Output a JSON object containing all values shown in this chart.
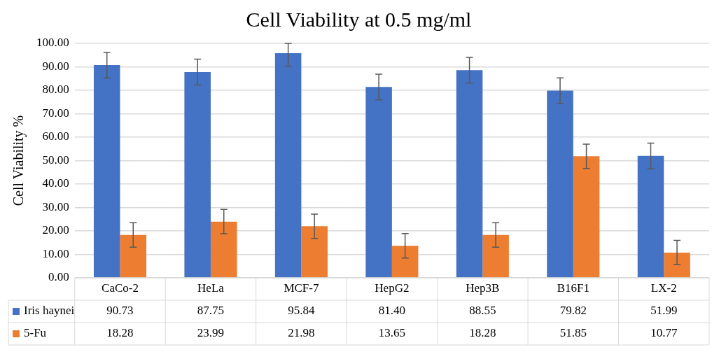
{
  "chart_data": {
    "type": "bar",
    "title": "Cell Viability at 0.5 mg/ml",
    "ylabel": "Cell Viability %",
    "categories": [
      "CaCo-2",
      "HeLa",
      "MCF-7",
      "HepG2",
      "Hep3B",
      "B16F1",
      "LX-2"
    ],
    "series": [
      {
        "name": "Iris haynei",
        "color": "#4472c4",
        "values": [
          90.73,
          87.75,
          95.84,
          81.4,
          88.55,
          79.82,
          51.99
        ],
        "value_labels": [
          "90.73",
          "87.75",
          "95.84",
          "81.40",
          "88.55",
          "79.82",
          "51.99"
        ],
        "errors": [
          5.5,
          5.5,
          [
            90.3,
            100
          ],
          5.5,
          5.5,
          5.5,
          5.5
        ]
      },
      {
        "name": "5-Fu",
        "color": "#ed7d31",
        "values": [
          18.28,
          23.99,
          21.98,
          13.65,
          18.28,
          51.85,
          10.77
        ],
        "value_labels": [
          "18.28",
          "23.99",
          "21.98",
          "13.65",
          "18.28",
          "51.85",
          "10.77"
        ],
        "errors": [
          5.2,
          5.2,
          5.2,
          5.2,
          5.2,
          5.2,
          5.2
        ]
      }
    ],
    "ylim": [
      0,
      100
    ],
    "yticks": [
      {
        "value": 0,
        "label": "0.00"
      },
      {
        "value": 10,
        "label": "10.00"
      },
      {
        "value": 20,
        "label": "20.00"
      },
      {
        "value": 30,
        "label": "30.00"
      },
      {
        "value": 40,
        "label": "40.00"
      },
      {
        "value": 50,
        "label": "50.00"
      },
      {
        "value": 60,
        "label": "60.00"
      },
      {
        "value": 70,
        "label": "70.00"
      },
      {
        "value": 80,
        "label": "80.00"
      },
      {
        "value": 90,
        "label": "90.00"
      },
      {
        "value": 100,
        "label": "100.00"
      }
    ],
    "grid": "y",
    "legend": "bottom left"
  }
}
